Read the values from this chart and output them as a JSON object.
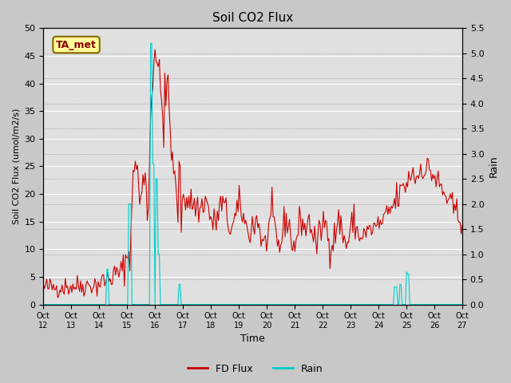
{
  "title": "Soil CO2 Flux",
  "xlabel": "Time",
  "ylabel_left": "Soil CO2 Flux (umol/m2/s)",
  "ylabel_right": "Rain",
  "ylim_left": [
    0,
    50
  ],
  "ylim_right": [
    0,
    5.5
  ],
  "yticks_left": [
    0,
    5,
    10,
    15,
    20,
    25,
    30,
    35,
    40,
    45,
    50
  ],
  "yticks_right": [
    0.0,
    0.5,
    1.0,
    1.5,
    2.0,
    2.5,
    3.0,
    3.5,
    4.0,
    4.5,
    5.0,
    5.5
  ],
  "xtick_labels": [
    "Oct 12",
    "Oct 13",
    "Oct 14",
    "Oct 15",
    "Oct 16",
    "Oct 17",
    "Oct 18",
    "Oct 19",
    "Oct 20",
    "Oct 21",
    "Oct 22",
    "Oct 23",
    "Oct 24",
    "Oct 25",
    "Oct 26",
    "Oct 27"
  ],
  "background_color": "#c8c8c8",
  "plot_bg_color": "#e0e0e0",
  "flux_color": "#cc0000",
  "rain_color": "#00cccc",
  "legend_flux_label": "FD Flux",
  "legend_rain_label": "Rain",
  "annotation_box_text": "TA_met",
  "annotation_box_facecolor": "#ffff99",
  "annotation_box_edgecolor": "#886600"
}
